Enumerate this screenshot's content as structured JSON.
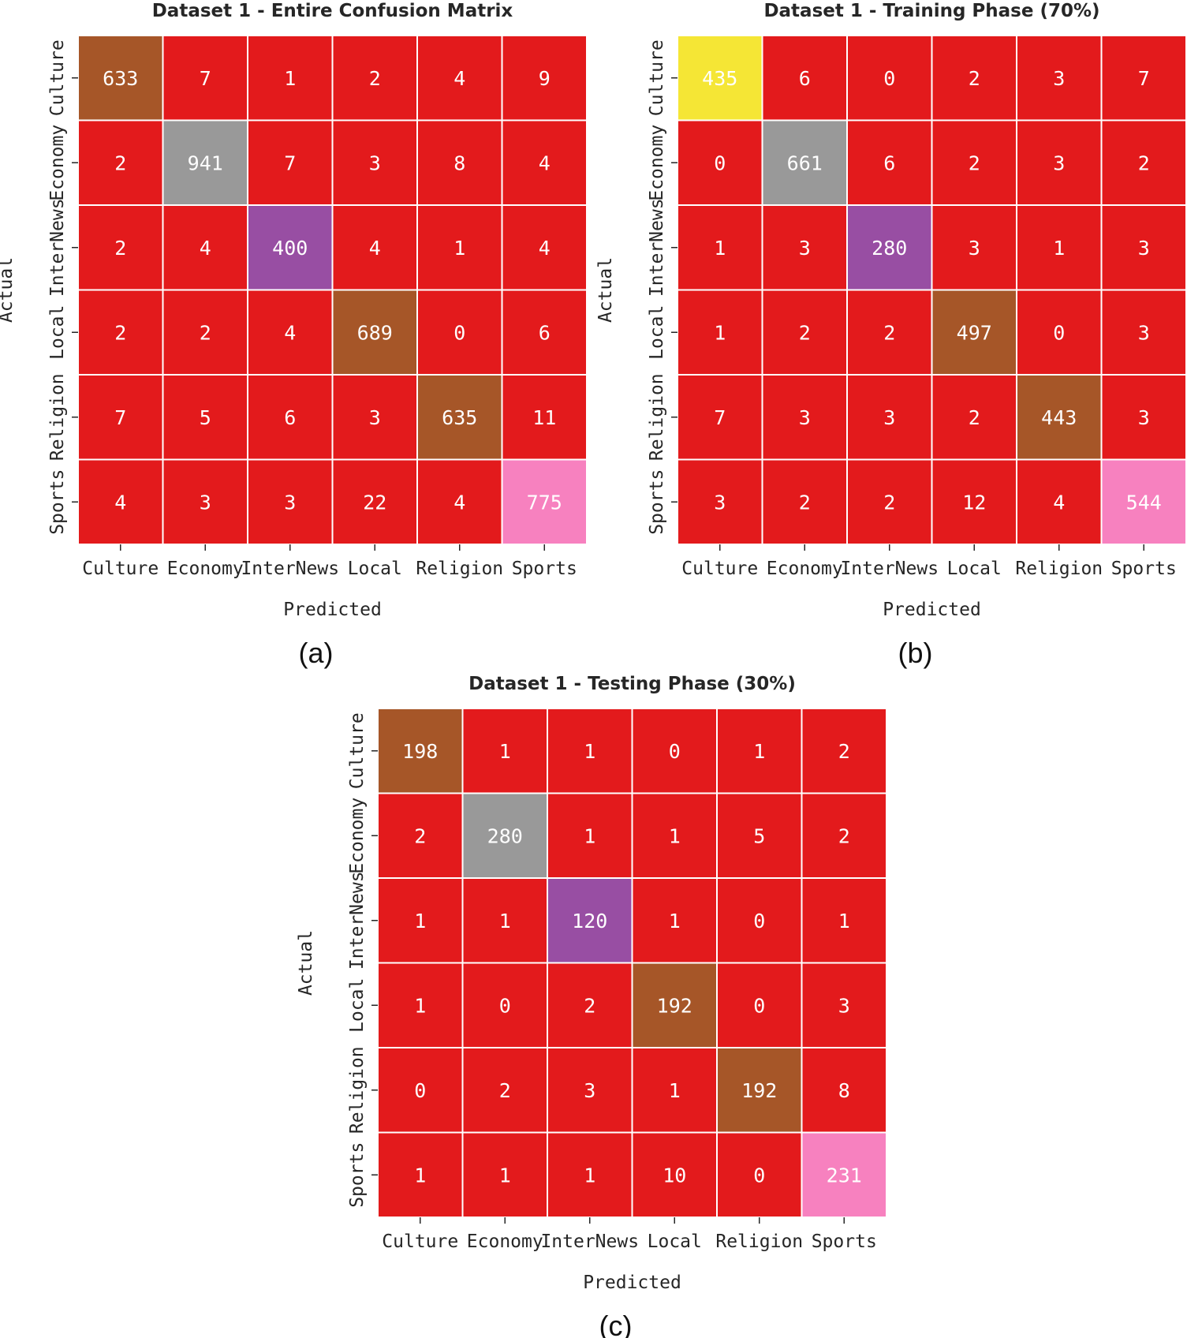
{
  "chart_data": [
    {
      "type": "heatmap",
      "panel": "(a)",
      "title": "Dataset 1 - Entire Confusion Matrix",
      "xlabel": "Predicted",
      "ylabel": "Actual",
      "x_categories": [
        "Culture",
        "Economy",
        "InterNews",
        "Local",
        "Religion",
        "Sports"
      ],
      "y_categories": [
        "Culture",
        "Economy",
        "InterNews",
        "Local",
        "Religion",
        "Sports"
      ],
      "values": [
        [
          633,
          7,
          1,
          2,
          4,
          9
        ],
        [
          2,
          941,
          7,
          3,
          8,
          4
        ],
        [
          2,
          4,
          400,
          4,
          1,
          4
        ],
        [
          2,
          2,
          4,
          689,
          0,
          6
        ],
        [
          7,
          5,
          6,
          3,
          635,
          11
        ],
        [
          4,
          3,
          3,
          22,
          4,
          775
        ]
      ],
      "off_diagonal_color": "#e31a1c",
      "diagonal_colors": [
        "#a65628",
        "#999999",
        "#984ea3",
        "#a65628",
        "#a65628",
        "#f781bf"
      ]
    },
    {
      "type": "heatmap",
      "panel": "(b)",
      "title": "Dataset 1 - Training Phase (70%)",
      "xlabel": "Predicted",
      "ylabel": "Actual",
      "x_categories": [
        "Culture",
        "Economy",
        "InterNews",
        "Local",
        "Religion",
        "Sports"
      ],
      "y_categories": [
        "Culture",
        "Economy",
        "InterNews",
        "Local",
        "Religion",
        "Sports"
      ],
      "values": [
        [
          435,
          6,
          0,
          2,
          3,
          7
        ],
        [
          0,
          661,
          6,
          2,
          3,
          2
        ],
        [
          1,
          3,
          280,
          3,
          1,
          3
        ],
        [
          1,
          2,
          2,
          497,
          0,
          3
        ],
        [
          7,
          3,
          3,
          2,
          443,
          3
        ],
        [
          3,
          2,
          2,
          12,
          4,
          544
        ]
      ],
      "off_diagonal_color": "#e31a1c",
      "diagonal_colors": [
        "#f5e635",
        "#999999",
        "#984ea3",
        "#a65628",
        "#a65628",
        "#f781bf"
      ]
    },
    {
      "type": "heatmap",
      "panel": "(c)",
      "title": "Dataset 1 - Testing Phase (30%)",
      "xlabel": "Predicted",
      "ylabel": "Actual",
      "x_categories": [
        "Culture",
        "Economy",
        "InterNews",
        "Local",
        "Religion",
        "Sports"
      ],
      "y_categories": [
        "Culture",
        "Economy",
        "InterNews",
        "Local",
        "Religion",
        "Sports"
      ],
      "values": [
        [
          198,
          1,
          1,
          0,
          1,
          2
        ],
        [
          2,
          280,
          1,
          1,
          5,
          2
        ],
        [
          1,
          1,
          120,
          1,
          0,
          1
        ],
        [
          1,
          0,
          2,
          192,
          0,
          3
        ],
        [
          0,
          2,
          3,
          1,
          192,
          8
        ],
        [
          1,
          1,
          1,
          10,
          0,
          231
        ]
      ],
      "off_diagonal_color": "#e31a1c",
      "diagonal_colors": [
        "#a65628",
        "#999999",
        "#984ea3",
        "#a65628",
        "#a65628",
        "#f781bf"
      ]
    }
  ]
}
